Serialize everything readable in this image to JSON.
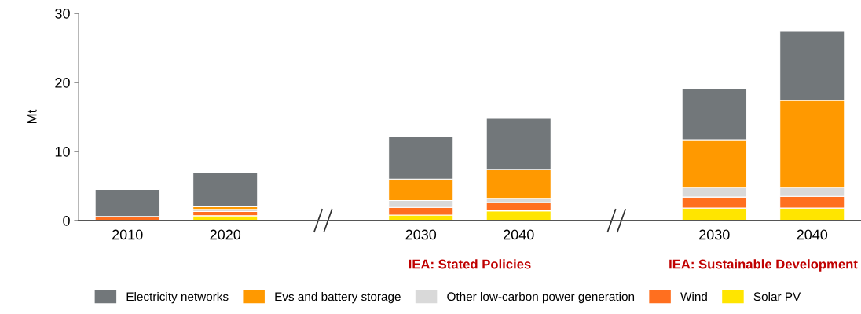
{
  "chart_data": {
    "type": "bar",
    "stacked": true,
    "ylabel": "Mt",
    "categories": [
      "2010",
      "2020",
      null,
      "2030",
      "2040",
      null,
      "2030",
      "2040"
    ],
    "series": [
      {
        "name": "Solar PV",
        "color": "#ffe500",
        "values": [
          0,
          0.7,
          null,
          0.8,
          1.4,
          null,
          1.8,
          1.8
        ]
      },
      {
        "name": "Wind",
        "color": "#ff6f1f",
        "values": [
          0.6,
          0.6,
          null,
          1.1,
          1.2,
          null,
          1.6,
          1.7
        ]
      },
      {
        "name": "Other low-carbon power generation",
        "color": "#d9d9d9",
        "values": [
          0,
          0.3,
          null,
          1.0,
          0.6,
          null,
          1.4,
          1.3
        ]
      },
      {
        "name": "Evs and battery storage",
        "color": "#ff9900",
        "values": [
          0,
          0.4,
          null,
          3.1,
          4.2,
          null,
          6.9,
          12.6
        ]
      },
      {
        "name": "Electricity networks",
        "color": "#72777a",
        "values": [
          3.9,
          4.9,
          null,
          6.1,
          7.5,
          null,
          7.4,
          10.0
        ]
      }
    ],
    "ylim": [
      0,
      30
    ],
    "yticks": [
      0,
      10,
      20,
      30
    ],
    "grid": false,
    "legend": "bottom",
    "annotations": [
      "IEA: Stated Policies",
      "IEA: Sustainable Development"
    ]
  }
}
